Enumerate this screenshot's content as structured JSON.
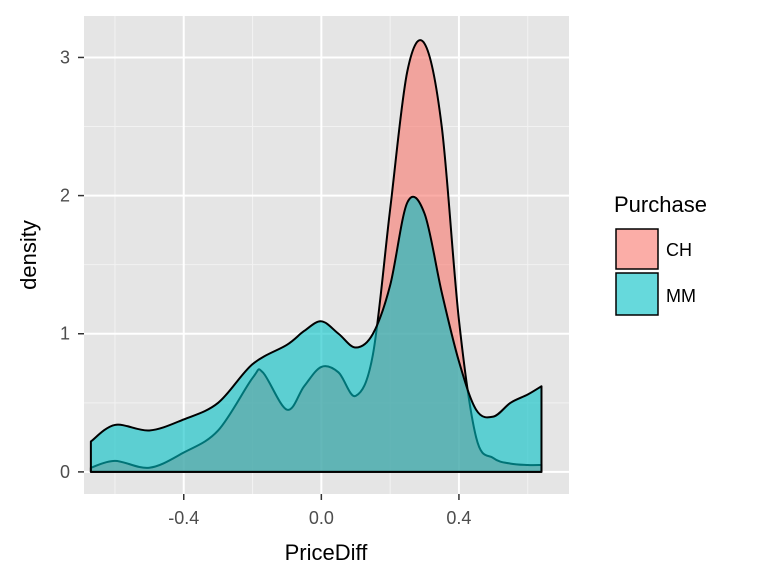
{
  "chart_data": {
    "type": "area",
    "subtype": "density",
    "title": "",
    "xlabel": "PriceDiff",
    "ylabel": "density",
    "xlim": [
      -0.69,
      0.72
    ],
    "ylim": [
      -0.16,
      3.3
    ],
    "x_ticks": [
      -0.4,
      0.0,
      0.4
    ],
    "x_tick_labels": [
      "-0.4",
      "0.0",
      "0.4"
    ],
    "y_ticks": [
      0,
      1,
      2,
      3
    ],
    "y_tick_labels": [
      "0",
      "1",
      "2",
      "3"
    ],
    "grid": true,
    "background": "#e5e5e5",
    "legend": {
      "title": "Purchase",
      "position": "right",
      "entries": [
        {
          "label": "CH",
          "color": "#f8766d"
        },
        {
          "label": "MM",
          "color": "#00bfc4"
        }
      ]
    },
    "series": [
      {
        "name": "CH",
        "color": "#f8766d",
        "opacity": 0.6,
        "x": [
          -0.67,
          -0.6,
          -0.5,
          -0.4,
          -0.3,
          -0.2,
          -0.17,
          -0.1,
          -0.05,
          0.0,
          0.05,
          0.1,
          0.15,
          0.2,
          0.25,
          0.3,
          0.35,
          0.4,
          0.45,
          0.5,
          0.55,
          0.6,
          0.64
        ],
        "y": [
          0.03,
          0.08,
          0.03,
          0.14,
          0.3,
          0.68,
          0.72,
          0.45,
          0.62,
          0.76,
          0.72,
          0.55,
          0.85,
          1.9,
          2.9,
          3.1,
          2.5,
          1.1,
          0.25,
          0.1,
          0.06,
          0.05,
          0.05
        ]
      },
      {
        "name": "MM",
        "color": "#00bfc4",
        "opacity": 0.6,
        "x": [
          -0.67,
          -0.6,
          -0.5,
          -0.4,
          -0.3,
          -0.2,
          -0.1,
          -0.05,
          0.0,
          0.05,
          0.1,
          0.15,
          0.2,
          0.25,
          0.3,
          0.35,
          0.4,
          0.45,
          0.5,
          0.55,
          0.6,
          0.64
        ],
        "y": [
          0.22,
          0.34,
          0.3,
          0.38,
          0.5,
          0.78,
          0.92,
          1.02,
          1.09,
          1.0,
          0.9,
          1.0,
          1.35,
          1.95,
          1.87,
          1.3,
          0.8,
          0.45,
          0.4,
          0.5,
          0.56,
          0.62
        ]
      }
    ]
  }
}
